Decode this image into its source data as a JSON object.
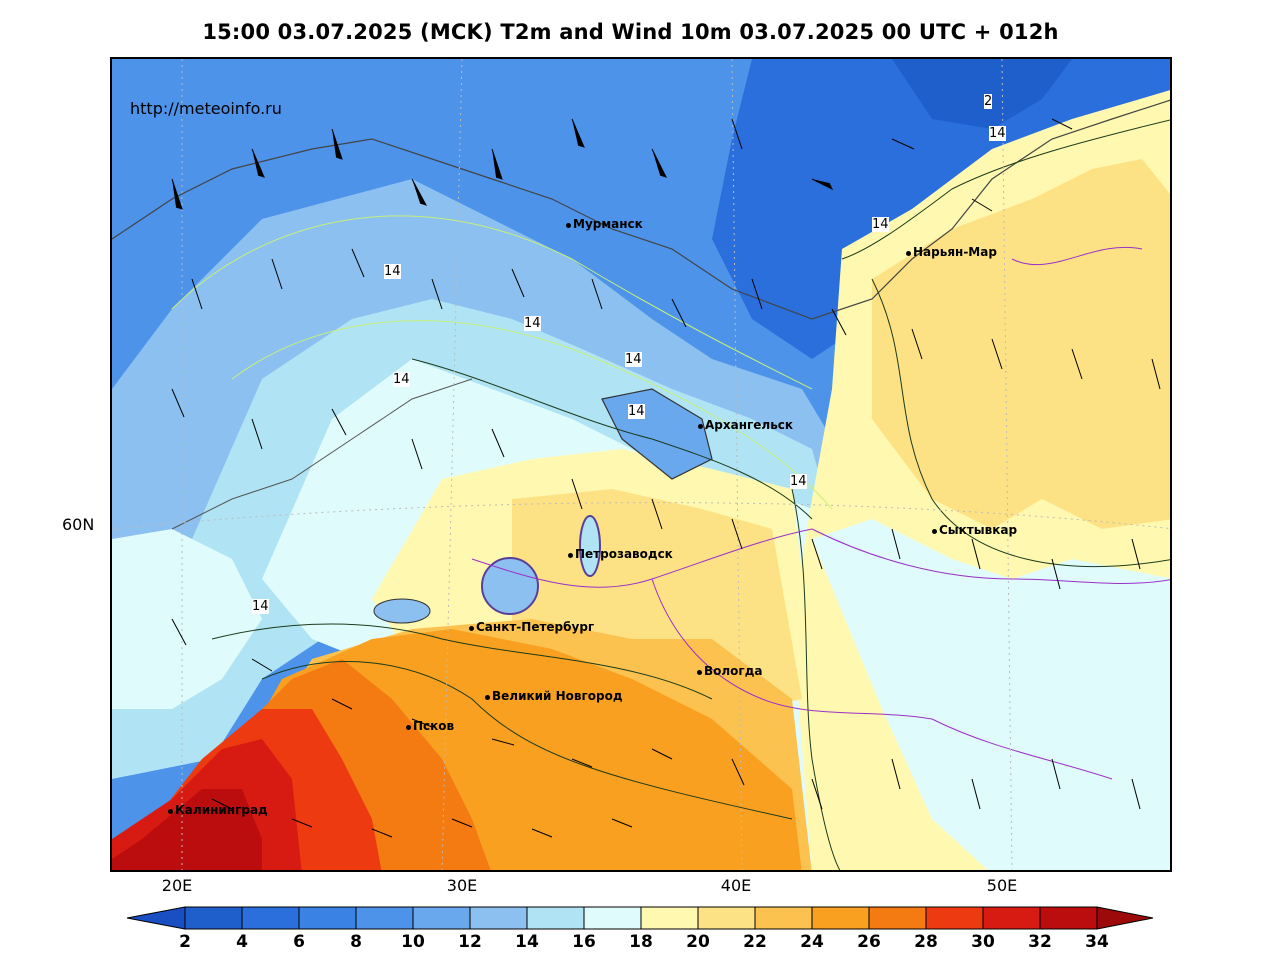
{
  "title": "15:00 03.07.2025 (MCK) T2m and Wind 10m 03.07.2025 00 UTC + 012h",
  "watermark": "http://meteoinfo.ru",
  "axes": {
    "lon_labels": [
      "20E",
      "30E",
      "40E",
      "50E"
    ],
    "lat_labels": [
      "60N"
    ]
  },
  "cities": [
    {
      "name": "Мурманск"
    },
    {
      "name": "Нарьян-Мар"
    },
    {
      "name": "Архангельск"
    },
    {
      "name": "Сыктывкар"
    },
    {
      "name": "Петрозаводск"
    },
    {
      "name": "Санкт-Петербург"
    },
    {
      "name": "Вологда"
    },
    {
      "name": "Великий Новгород"
    },
    {
      "name": "Псков"
    },
    {
      "name": "Калининград"
    }
  ],
  "contour_labels": [
    "2",
    "14",
    "14",
    "14",
    "14",
    "14",
    "14",
    "14",
    "14",
    "14",
    "14"
  ],
  "colorbar": {
    "labels": [
      "2",
      "4",
      "6",
      "8",
      "10",
      "12",
      "14",
      "16",
      "18",
      "20",
      "22",
      "24",
      "26",
      "28",
      "30",
      "32",
      "34"
    ],
    "colors": [
      "#1f5fcc",
      "#2a6fdb",
      "#3a82e4",
      "#4d93ea",
      "#6aa8ee",
      "#8cc0f0",
      "#b0e4f4",
      "#e0fbfb",
      "#fff8b0",
      "#fde285",
      "#fbc24f",
      "#f9a020",
      "#f47a12",
      "#ee3a10",
      "#d81b12",
      "#bb0d0d"
    ],
    "low_color": "#1a4fc4",
    "high_color": "#9c0a0a"
  }
}
